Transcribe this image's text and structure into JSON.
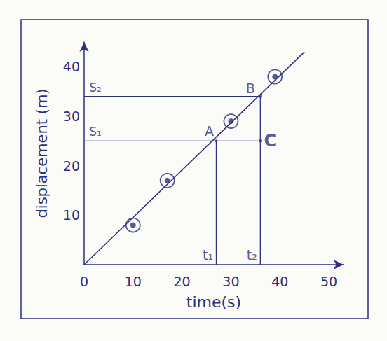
{
  "chart_data": {
    "type": "line",
    "x_label": "time(s)",
    "y_label": "displacement (m)",
    "color": "#2b2f7e",
    "x": [
      10,
      17,
      30,
      39
    ],
    "values": [
      8,
      17,
      29,
      38
    ],
    "marker": "circled_dot",
    "fit_line": {
      "x": [
        0,
        45
      ],
      "values": [
        0,
        43
      ]
    },
    "points": [
      {
        "label": "A",
        "x": 27,
        "y": 25
      },
      {
        "label": "B",
        "x": 36,
        "y": 34
      },
      {
        "label": "C",
        "x": 36,
        "y": 25
      }
    ],
    "y_marks": [
      {
        "label": "S₁",
        "value": 25
      },
      {
        "label": "S₂",
        "value": 34
      }
    ],
    "x_marks": [
      {
        "label": "t₁",
        "value": 27
      },
      {
        "label": "t₂",
        "value": 36
      }
    ],
    "xlim": [
      0,
      53
    ],
    "ylim": [
      0,
      45
    ],
    "xticks": [
      0,
      10,
      20,
      30,
      40,
      50
    ],
    "yticks": [
      10,
      20,
      30,
      40
    ],
    "grid": false
  }
}
